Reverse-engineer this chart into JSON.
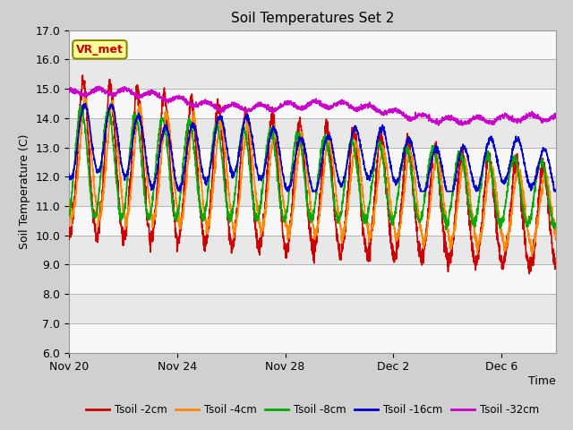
{
  "title": "Soil Temperatures Set 2",
  "xlabel": "Time",
  "ylabel": "Soil Temperature (C)",
  "ylim": [
    6.0,
    17.0
  ],
  "yticks": [
    6.0,
    7.0,
    8.0,
    9.0,
    10.0,
    11.0,
    12.0,
    13.0,
    14.0,
    15.0,
    16.0,
    17.0
  ],
  "colors": {
    "2cm": "#cc0000",
    "4cm": "#ff8800",
    "8cm": "#00aa00",
    "16cm": "#0000cc",
    "32cm": "#cc00cc"
  },
  "legend_labels": [
    "Tsoil -2cm",
    "Tsoil -4cm",
    "Tsoil -8cm",
    "Tsoil -16cm",
    "Tsoil -32cm"
  ],
  "vr_met_box": {
    "text": "VR_met",
    "facecolor": "#ffff99",
    "edgecolor": "#888800",
    "textcolor": "#cc0000"
  },
  "xtick_positions": [
    0,
    4,
    8,
    12,
    16
  ],
  "xtick_labels": [
    "Nov 20",
    "Nov 24",
    "Nov 28",
    "Dec 2",
    "Dec 6"
  ],
  "n_days": 18,
  "fig_bg": "#d0d0d0",
  "plot_bg": "#e8e8e8",
  "stripe_color": "#f8f8f8"
}
